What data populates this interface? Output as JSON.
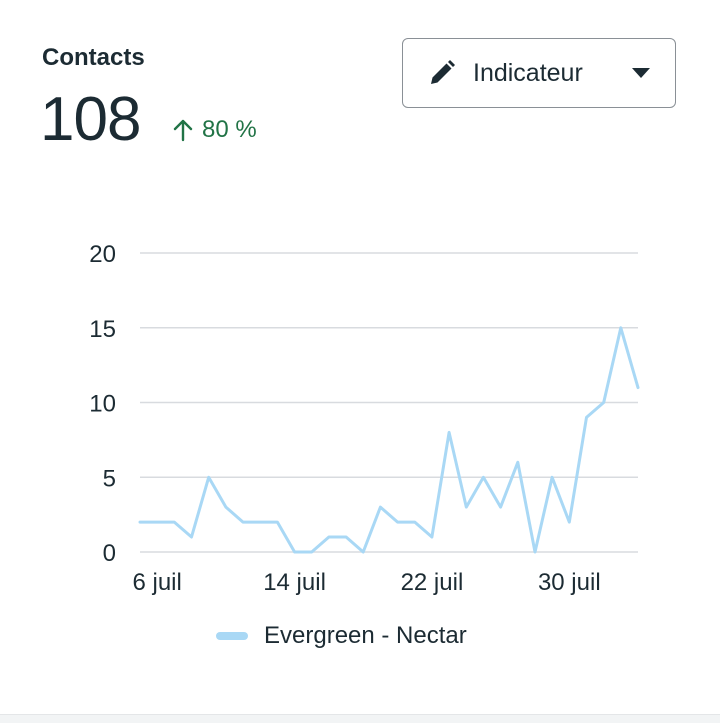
{
  "metric": {
    "title": "Contacts",
    "value": "108",
    "change": "80 %",
    "change_color": "#217346"
  },
  "dropdown": {
    "label": "Indicateur",
    "icon": "pencil-icon",
    "caret": "caret-down-icon"
  },
  "chart_data": {
    "type": "line",
    "x": [
      "5 juil",
      "6 juil",
      "7 juil",
      "8 juil",
      "9 juil",
      "10 juil",
      "11 juil",
      "12 juil",
      "13 juil",
      "14 juil",
      "15 juil",
      "16 juil",
      "17 juil",
      "18 juil",
      "19 juil",
      "20 juil",
      "21 juil",
      "22 juil",
      "23 juil",
      "24 juil",
      "25 juil",
      "26 juil",
      "27 juil",
      "28 juil",
      "29 juil",
      "30 juil",
      "31 juil",
      "1 août",
      "2 août",
      "3 août"
    ],
    "x_ticks": [
      "6 juil",
      "14 juil",
      "22 juil",
      "30 juil"
    ],
    "series": [
      {
        "name": "Evergreen - Nectar",
        "color": "#a9d8f5",
        "values": [
          2,
          2,
          2,
          1,
          5,
          3,
          2,
          2,
          2,
          0,
          0,
          1,
          1,
          0,
          3,
          2,
          2,
          1,
          8,
          3,
          5,
          3,
          6,
          0,
          5,
          2,
          9,
          10,
          15,
          11
        ]
      }
    ],
    "ylim": [
      0,
      20
    ],
    "y_ticks": [
      0,
      5,
      10,
      15,
      20
    ],
    "grid": true,
    "legend": "bottom"
  }
}
